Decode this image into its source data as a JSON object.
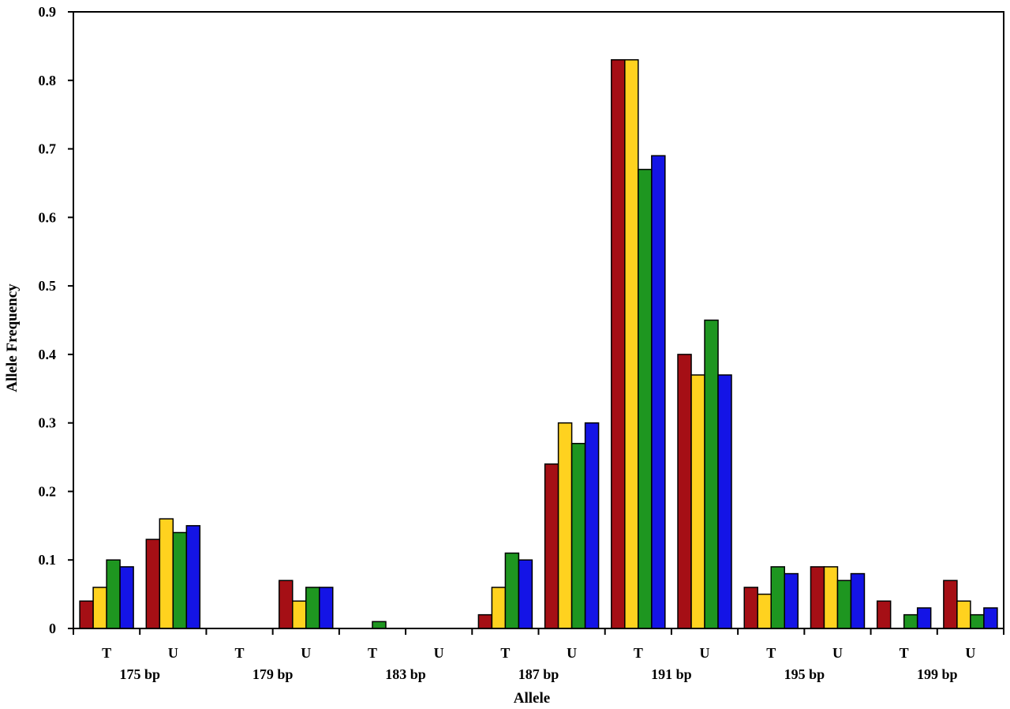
{
  "chart_data": {
    "type": "bar",
    "xlabel": "Allele",
    "ylabel": "Allele Frequency",
    "ylim": [
      0,
      0.9
    ],
    "y_ticks": [
      "0",
      "0.1",
      "0.2",
      "0.3",
      "0.4",
      "0.5",
      "0.6",
      "0.7",
      "0.8",
      "0.9"
    ],
    "grid": false,
    "legend": "none",
    "groups": [
      "175 bp",
      "179 bp",
      "183 bp",
      "187 bp",
      "191 bp",
      "195 bp",
      "199 bp"
    ],
    "subcategories": [
      "T",
      "U"
    ],
    "categories": [
      "175 bp T",
      "175 bp U",
      "179 bp T",
      "179 bp U",
      "183 bp T",
      "183 bp U",
      "187 bp T",
      "187 bp U",
      "191 bp T",
      "191 bp U",
      "195 bp T",
      "195 bp U",
      "199 bp T",
      "199 bp U"
    ],
    "series": [
      {
        "color": "#a50f15",
        "values": [
          0.04,
          0.13,
          0,
          0.07,
          0,
          0,
          0.02,
          0.24,
          0.83,
          0.4,
          0.06,
          0.09,
          0.04,
          0.07
        ]
      },
      {
        "color": "#ffd21f",
        "values": [
          0.06,
          0.16,
          0,
          0.04,
          0,
          0,
          0.06,
          0.3,
          0.83,
          0.37,
          0.05,
          0.09,
          0,
          0.04
        ]
      },
      {
        "color": "#1e9620",
        "values": [
          0.1,
          0.14,
          0,
          0.06,
          0.01,
          0,
          0.11,
          0.27,
          0.67,
          0.45,
          0.09,
          0.07,
          0.02,
          0.02
        ]
      },
      {
        "color": "#1414e6",
        "values": [
          0.09,
          0.15,
          0,
          0.06,
          0,
          0,
          0.1,
          0.3,
          0.69,
          0.37,
          0.08,
          0.08,
          0.03,
          0.03
        ]
      }
    ]
  }
}
